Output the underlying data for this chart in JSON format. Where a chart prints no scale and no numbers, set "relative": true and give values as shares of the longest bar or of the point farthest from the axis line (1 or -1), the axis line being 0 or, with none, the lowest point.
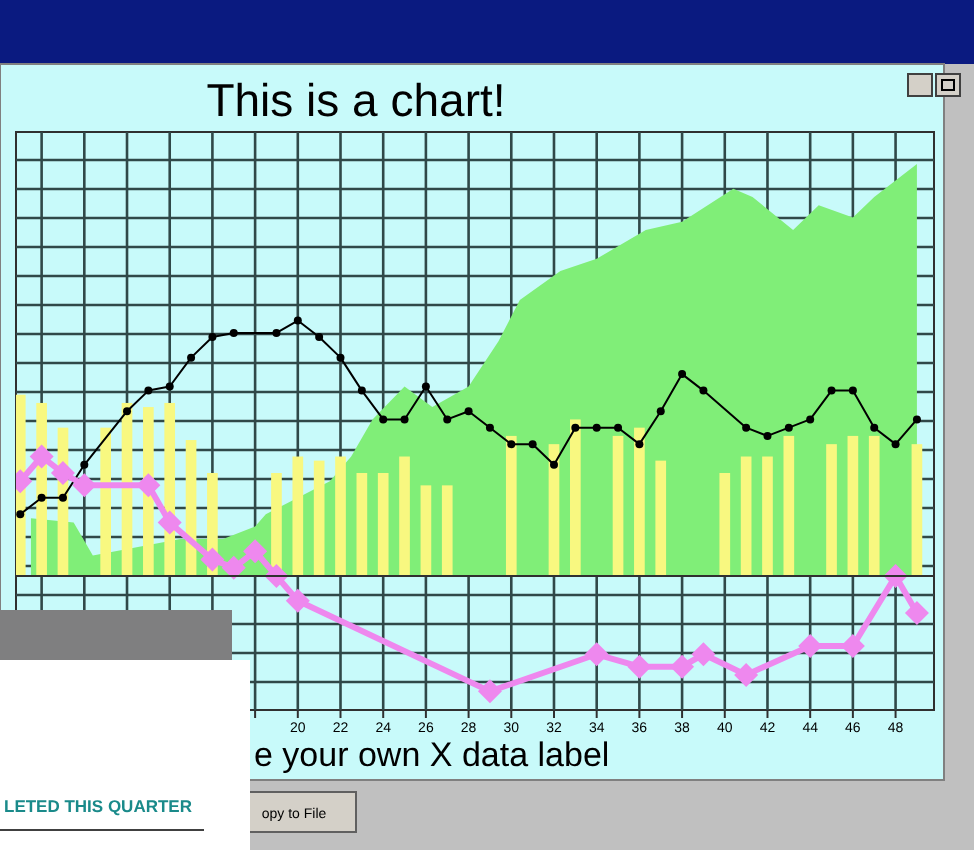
{
  "chart_data": {
    "type": "bar",
    "title": "This is a chart!",
    "xlabel": "e your own X data label",
    "relative": true,
    "xlim": [
      6.8,
      49.8
    ],
    "xticks": [
      {
        "value": 8,
        "label": null
      },
      {
        "value": 10,
        "label": null
      },
      {
        "value": 12,
        "label": null
      },
      {
        "value": 14,
        "label": null
      },
      {
        "value": 16,
        "label": null
      },
      {
        "value": 18,
        "label": null
      },
      20,
      22,
      24,
      26,
      28,
      30,
      32,
      34,
      36,
      38,
      40,
      42,
      44,
      46,
      48
    ],
    "grid": true,
    "series": [
      {
        "type": "area",
        "color": "#80ee78",
        "x": [
          7.5,
          9.5,
          10.4,
          14.5,
          16.5,
          18,
          18.5,
          21.5,
          22.5,
          23.5,
          25,
          26.3,
          28,
          29.4,
          30.4,
          32.3,
          34,
          36.3,
          38,
          40.4,
          41.3,
          43.2,
          44.4,
          46,
          47,
          49
        ],
        "values": [
          0.14,
          0.13,
          0.05,
          0.09,
          0.09,
          0.12,
          0.15,
          0.23,
          0.29,
          0.38,
          0.46,
          0.41,
          0.46,
          0.57,
          0.67,
          0.74,
          0.77,
          0.84,
          0.86,
          0.94,
          0.92,
          0.84,
          0.9,
          0.87,
          0.92,
          1.0
        ]
      },
      {
        "color": "#f8f880",
        "x": [
          7,
          8,
          9,
          11,
          12,
          13,
          14,
          15,
          16,
          19,
          20,
          21,
          22,
          23,
          24,
          25,
          26,
          27,
          30,
          32,
          33,
          35,
          36,
          37,
          40,
          41,
          42,
          43,
          45,
          46,
          47,
          49
        ],
        "values": [
          0.44,
          0.42,
          0.36,
          0.36,
          0.42,
          0.41,
          0.42,
          0.33,
          0.25,
          0.25,
          0.29,
          0.28,
          0.29,
          0.25,
          0.25,
          0.29,
          0.22,
          0.22,
          0.34,
          0.32,
          0.38,
          0.34,
          0.36,
          0.28,
          0.25,
          0.29,
          0.29,
          0.34,
          0.32,
          0.34,
          0.34,
          0.32
        ]
      },
      {
        "type": "line",
        "color": "#000000",
        "marker": "circle",
        "x": [
          7,
          8,
          9,
          10,
          12,
          13,
          14,
          15,
          16,
          17,
          19,
          20,
          21,
          22,
          23,
          24,
          25,
          26,
          27,
          28,
          29,
          30,
          31,
          32,
          33,
          34,
          35,
          36,
          37,
          38,
          39,
          41,
          42,
          43,
          44,
          45,
          46,
          47,
          48,
          49
        ],
        "values": [
          0.15,
          0.19,
          0.19,
          0.27,
          0.4,
          0.45,
          0.46,
          0.53,
          0.58,
          0.59,
          0.59,
          0.62,
          0.58,
          0.53,
          0.45,
          0.38,
          0.38,
          0.46,
          0.38,
          0.4,
          0.36,
          0.32,
          0.32,
          0.27,
          0.36,
          0.36,
          0.36,
          0.32,
          0.4,
          0.49,
          0.45,
          0.36,
          0.34,
          0.36,
          0.38,
          0.45,
          0.45,
          0.36,
          0.32,
          0.38
        ]
      },
      {
        "type": "line",
        "color": "#ee88ee",
        "marker": "diamond",
        "x": [
          7,
          8,
          9,
          10,
          13,
          14,
          16,
          17,
          18,
          19,
          20,
          29,
          34,
          36,
          38,
          39,
          41,
          44,
          46,
          48,
          49
        ],
        "values": [
          0.23,
          0.29,
          0.25,
          0.22,
          0.22,
          0.13,
          0.04,
          0.02,
          0.06,
          0.0,
          -0.06,
          -0.28,
          -0.19,
          -0.22,
          -0.22,
          -0.19,
          -0.24,
          -0.17,
          -0.17,
          0.0,
          -0.09
        ]
      }
    ],
    "annotations": [
      "LETED THIS QUARTER",
      "opy to File"
    ]
  }
}
